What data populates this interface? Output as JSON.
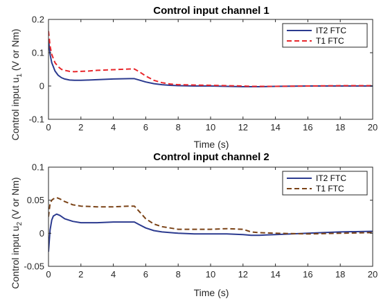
{
  "chart_data": [
    {
      "type": "line",
      "title": "Control input channel 1",
      "xlabel": "Time (s)",
      "ylabel_main": "Control input u",
      "ylabel_sub": "1",
      "ylabel_tail": " (V or Nm)",
      "xlim": [
        0,
        20
      ],
      "ylim": [
        -0.1,
        0.2
      ],
      "xticks": [
        "0",
        "2",
        "4",
        "6",
        "8",
        "10",
        "12",
        "14",
        "16",
        "18",
        "20"
      ],
      "yticks": [
        "-0.1",
        "0",
        "0.1",
        "0.2"
      ],
      "grid": false,
      "legend_position": "top-right",
      "x": [
        0,
        0.1,
        0.2,
        0.4,
        0.6,
        0.8,
        1.0,
        1.3,
        1.6,
        2.0,
        2.5,
        3.0,
        4.0,
        5.0,
        5.3,
        5.6,
        6.0,
        6.5,
        7.0,
        7.5,
        8.0,
        9.0,
        10.0,
        11.0,
        12.0,
        12.5,
        13.0,
        14.0,
        16.0,
        18.0,
        20.0
      ],
      "series": [
        {
          "name": "IT2 FTC",
          "color": "#2b3a8f",
          "dash": "solid",
          "values": [
            0.14,
            0.095,
            0.07,
            0.045,
            0.032,
            0.025,
            0.021,
            0.018,
            0.017,
            0.017,
            0.018,
            0.019,
            0.021,
            0.022,
            0.022,
            0.018,
            0.012,
            0.007,
            0.004,
            0.002,
            0.001,
            0.0,
            0.0,
            -0.001,
            -0.002,
            -0.002,
            -0.002,
            -0.001,
            0.0,
            0.0,
            0.0
          ]
        },
        {
          "name": "T1 FTC",
          "color": "#e8262b",
          "dash": "dashed",
          "values": [
            0.165,
            0.12,
            0.095,
            0.07,
            0.058,
            0.05,
            0.047,
            0.044,
            0.043,
            0.044,
            0.045,
            0.047,
            0.049,
            0.051,
            0.051,
            0.043,
            0.03,
            0.017,
            0.01,
            0.006,
            0.004,
            0.003,
            0.002,
            0.001,
            0.0,
            -0.001,
            -0.001,
            -0.001,
            0.0,
            0.001,
            0.001
          ]
        }
      ]
    },
    {
      "type": "line",
      "title": "Control input channel 2",
      "xlabel": "Time (s)",
      "ylabel_main": "Control input u",
      "ylabel_sub": "2",
      "ylabel_tail": " (V or Nm)",
      "xlim": [
        0,
        20
      ],
      "ylim": [
        -0.05,
        0.1
      ],
      "xticks": [
        "0",
        "2",
        "4",
        "6",
        "8",
        "10",
        "12",
        "14",
        "16",
        "18",
        "20"
      ],
      "yticks": [
        "-0.05",
        "0",
        "0.05",
        "0.1"
      ],
      "grid": false,
      "legend_position": "top-right",
      "x": [
        0,
        0.1,
        0.2,
        0.3,
        0.5,
        0.7,
        1.0,
        1.5,
        2.0,
        3.0,
        4.0,
        5.0,
        5.3,
        5.6,
        6.0,
        6.5,
        7.0,
        8.0,
        9.0,
        10.0,
        11.0,
        12.0,
        12.5,
        13.0,
        14.0,
        16.0,
        18.0,
        20.0
      ],
      "series": [
        {
          "name": "IT2 FTC",
          "color": "#2b3a8f",
          "dash": "solid",
          "values": [
            -0.028,
            0.005,
            0.02,
            0.026,
            0.029,
            0.027,
            0.022,
            0.018,
            0.016,
            0.016,
            0.017,
            0.017,
            0.017,
            0.013,
            0.008,
            0.004,
            0.002,
            0.0,
            -0.001,
            -0.001,
            -0.001,
            -0.002,
            -0.003,
            -0.003,
            -0.002,
            0.0,
            0.002,
            0.003
          ]
        },
        {
          "name": "T1 FTC",
          "color": "#7a4216",
          "dash": "dashed",
          "values": [
            0.025,
            0.045,
            0.05,
            0.052,
            0.054,
            0.052,
            0.048,
            0.043,
            0.041,
            0.04,
            0.04,
            0.041,
            0.041,
            0.033,
            0.022,
            0.014,
            0.01,
            0.006,
            0.006,
            0.006,
            0.007,
            0.006,
            0.002,
            0.001,
            0.0,
            -0.001,
            0.0,
            0.001
          ]
        }
      ]
    }
  ]
}
